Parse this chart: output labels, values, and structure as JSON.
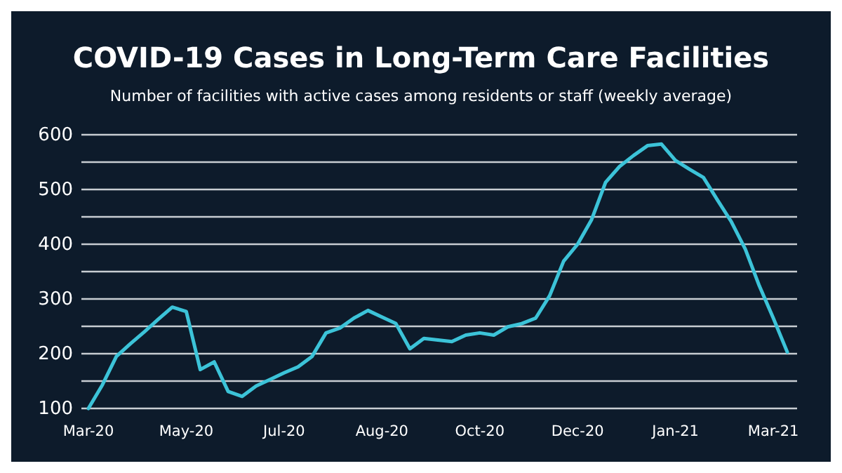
{
  "chart_data": {
    "type": "line",
    "title": "COVID-19 Cases in Long-Term Care Facilities",
    "subtitle": "Number of facilities with active cases among residents or staff (weekly average)",
    "categories": [
      "Mar-20",
      null,
      null,
      null,
      null,
      null,
      null,
      "May-20",
      null,
      null,
      null,
      null,
      null,
      null,
      "Jul-20",
      null,
      null,
      null,
      null,
      null,
      null,
      "Aug-20",
      null,
      null,
      null,
      null,
      null,
      null,
      "Oct-20",
      null,
      null,
      null,
      null,
      null,
      null,
      "Dec-20",
      null,
      null,
      null,
      null,
      null,
      null,
      "Jan-21",
      null,
      null,
      null,
      null,
      null,
      null,
      "Mar-21",
      null
    ],
    "series": [
      {
        "color": "#3cc3d8",
        "values": [
          100,
          143,
          195,
          218,
          240,
          263,
          285,
          277,
          171,
          185,
          131,
          122,
          141,
          153,
          165,
          176,
          195,
          238,
          247,
          265,
          279,
          267,
          255,
          209,
          228,
          225,
          222,
          234,
          238,
          234,
          249,
          255,
          265,
          306,
          369,
          400,
          445,
          513,
          542,
          562,
          580,
          583,
          553,
          537,
          522,
          481,
          441,
          391,
          324,
          265,
          203
        ]
      }
    ],
    "ylim": [
      100,
      600
    ],
    "yticks": [
      100,
      {
        "value": 150,
        "label": null
      },
      200,
      {
        "value": 250,
        "label": null
      },
      300,
      {
        "value": 350,
        "label": null
      },
      400,
      {
        "value": 450,
        "label": null
      },
      500,
      {
        "value": 550,
        "label": null
      },
      600
    ],
    "grid": "y",
    "marker": "none",
    "line_style": "solid"
  }
}
